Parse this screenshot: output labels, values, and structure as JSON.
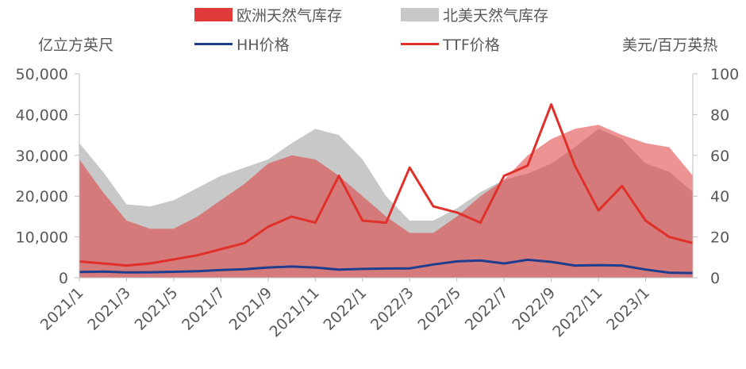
{
  "chart_data": {
    "type": "area",
    "legend": {
      "placement": "top",
      "entries": [
        {
          "label": "欧洲天然气库存",
          "kind": "area",
          "color": "#e03a3a"
        },
        {
          "label": "北美天然气库存",
          "kind": "area",
          "color": "#c8c8c8"
        },
        {
          "label": "HH价格",
          "kind": "line",
          "color": "#1f3d8f"
        },
        {
          "label": "TTF价格",
          "kind": "line",
          "color": "#e0302a"
        }
      ]
    },
    "left_axis": {
      "title": "亿立方英尺",
      "ylim": [
        0,
        50000
      ],
      "ticks": [
        "0",
        "10,000",
        "20,000",
        "30,000",
        "40,000",
        "50,000"
      ]
    },
    "right_axis": {
      "title": "美元/百万英热",
      "ylim": [
        0,
        100
      ],
      "ticks": [
        "0",
        "20",
        "40",
        "60",
        "80",
        "100"
      ]
    },
    "x_axis": {
      "range": [
        "2021-01",
        "2023-03"
      ],
      "tick_labels": [
        "2021/1",
        "2021/3",
        "2021/5",
        "2021/7",
        "2021/9",
        "2021/11",
        "2022/1",
        "2022/3",
        "2022/5",
        "2022/7",
        "2022/9",
        "2022/11",
        "2023/1"
      ]
    },
    "x": [
      "2021-01",
      "2021-02",
      "2021-03",
      "2021-04",
      "2021-05",
      "2021-06",
      "2021-07",
      "2021-08",
      "2021-09",
      "2021-10",
      "2021-11",
      "2021-12",
      "2022-01",
      "2022-02",
      "2022-03",
      "2022-04",
      "2022-05",
      "2022-06",
      "2022-07",
      "2022-08",
      "2022-09",
      "2022-10",
      "2022-11",
      "2022-12",
      "2023-01",
      "2023-02",
      "2023-03"
    ],
    "series": [
      {
        "name": "欧洲天然气库存",
        "axis": "left",
        "type": "area",
        "color": "#e03a3a",
        "values": [
          29000,
          21000,
          14000,
          12000,
          12000,
          15000,
          19000,
          23000,
          28000,
          30000,
          29000,
          25000,
          20000,
          15000,
          11000,
          11000,
          15000,
          20000,
          24000,
          30000,
          34000,
          36500,
          37500,
          35000,
          33000,
          32000,
          25000
        ]
      },
      {
        "name": "北美天然气库存",
        "axis": "left",
        "type": "area",
        "color": "#c8c8c8",
        "values": [
          33000,
          26000,
          18000,
          17500,
          19000,
          22000,
          25000,
          27000,
          29000,
          33000,
          36500,
          35000,
          29000,
          20000,
          14000,
          14000,
          17000,
          21000,
          24000,
          25500,
          28000,
          32000,
          36500,
          34000,
          28000,
          26000,
          21000
        ]
      },
      {
        "name": "HH价格",
        "axis": "right",
        "type": "line",
        "color": "#1f3d8f",
        "values": [
          2.8,
          3.0,
          2.6,
          2.7,
          2.9,
          3.2,
          3.8,
          4.2,
          5.0,
          5.5,
          5.0,
          4.0,
          4.3,
          4.5,
          4.6,
          6.5,
          8.0,
          8.5,
          7.0,
          8.8,
          7.8,
          6.0,
          6.2,
          6.0,
          4.0,
          2.5,
          2.3
        ]
      },
      {
        "name": "TTF价格",
        "axis": "right",
        "type": "line",
        "color": "#e0302a",
        "values": [
          8,
          7,
          6,
          7,
          9,
          11,
          14,
          17,
          25,
          30,
          27,
          50,
          28,
          27,
          54,
          35,
          32,
          27,
          50,
          55,
          85,
          55,
          33,
          45,
          28,
          20,
          17
        ]
      }
    ],
    "annotations": [],
    "grid": false
  }
}
